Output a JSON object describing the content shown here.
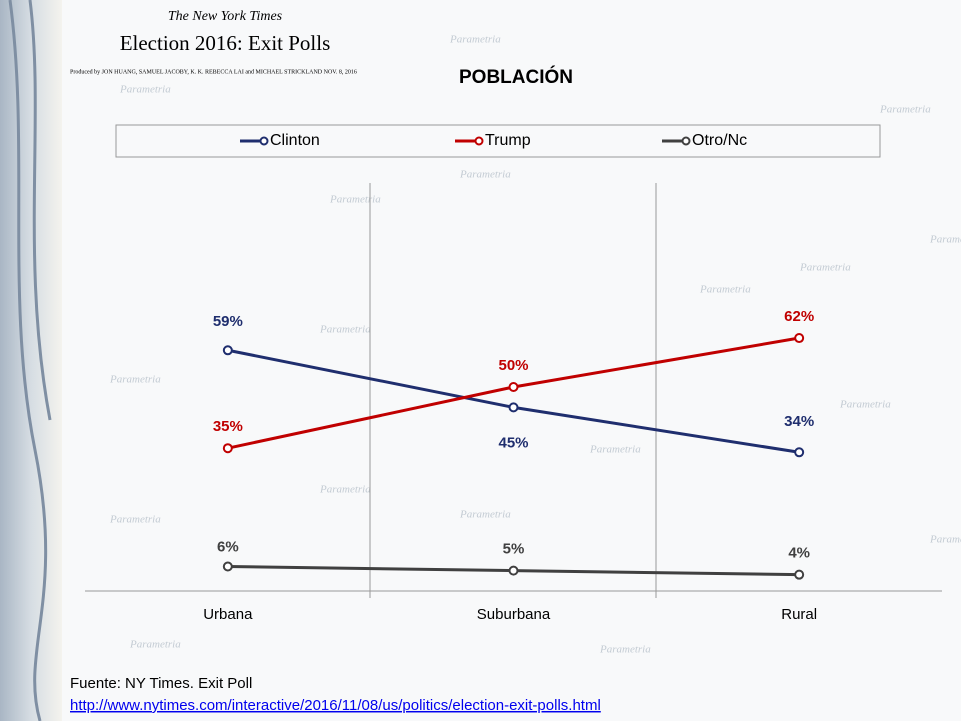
{
  "header": {
    "masthead": "The New York Times",
    "headline": "Election 2016: Exit Polls",
    "byline": "Produced by JON HUANG, SAMUEL JACOBY, K. K. REBECCA LAI and MICHAEL STRICKLAND   NOV. 8, 2016"
  },
  "watermark": "Parametria",
  "chart_data": {
    "type": "line",
    "title": "POBLACIÓN",
    "categories": [
      "Urbana",
      "Suburbana",
      "Rural"
    ],
    "series": [
      {
        "name": "Clinton",
        "color": "#1f2e6e",
        "values": [
          59,
          45,
          34
        ],
        "value_labels": [
          "59%",
          "45%",
          "34%"
        ]
      },
      {
        "name": "Trump",
        "color": "#c00000",
        "values": [
          35,
          50,
          62
        ],
        "value_labels": [
          "35%",
          "50%",
          "62%"
        ]
      },
      {
        "name": "Otro/Nc",
        "color": "#404040",
        "values": [
          6,
          5,
          4
        ],
        "value_labels": [
          "6%",
          "5%",
          "4%"
        ]
      }
    ],
    "ylim": [
      0,
      100
    ],
    "legend": "top"
  },
  "footer": {
    "source": "Fuente: NY Times. Exit Poll",
    "url": "http://www.nytimes.com/interactive/2016/11/08/us/politics/election-exit-polls.html"
  }
}
